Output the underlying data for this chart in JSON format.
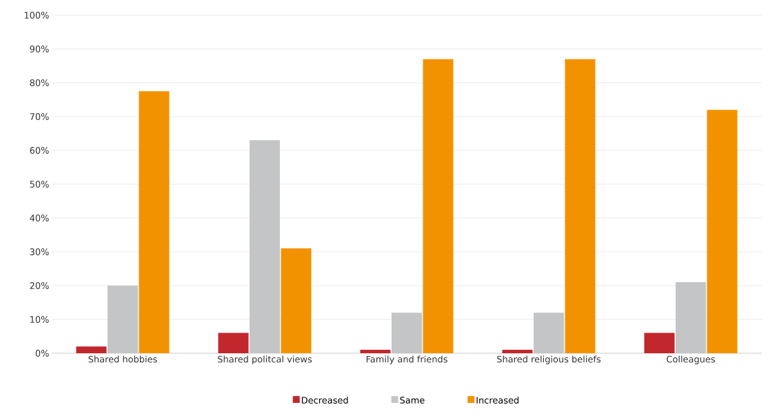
{
  "chart_data": {
    "type": "bar",
    "categories": [
      "Shared hobbies",
      "Shared politcal views",
      "Family and friends",
      "Shared religious beliefs",
      "Colleagues"
    ],
    "series": [
      {
        "name": "Decreased",
        "color": "#c1272d",
        "values": [
          2,
          6,
          1,
          1,
          6
        ]
      },
      {
        "name": "Same",
        "color": "#c4c5c7",
        "values": [
          20,
          63,
          12,
          12,
          21
        ]
      },
      {
        "name": "Increased",
        "color": "#f39200",
        "values": [
          77.5,
          31,
          87,
          87,
          72
        ]
      }
    ],
    "ylim": [
      0,
      100
    ],
    "yticks": [
      {
        "value": 0,
        "label": "0%"
      },
      {
        "value": 10,
        "label": "10%"
      },
      {
        "value": 20,
        "label": "20%"
      },
      {
        "value": 30,
        "label": "30%"
      },
      {
        "value": 40,
        "label": "40%"
      },
      {
        "value": 50,
        "label": "50%"
      },
      {
        "value": 60,
        "label": "60%"
      },
      {
        "value": 70,
        "label": "70%"
      },
      {
        "value": 80,
        "label": "80%"
      },
      {
        "value": 90,
        "label": "90%"
      },
      {
        "value": 100,
        "label": "100%"
      }
    ],
    "grid": "y",
    "legend": "bottom"
  }
}
